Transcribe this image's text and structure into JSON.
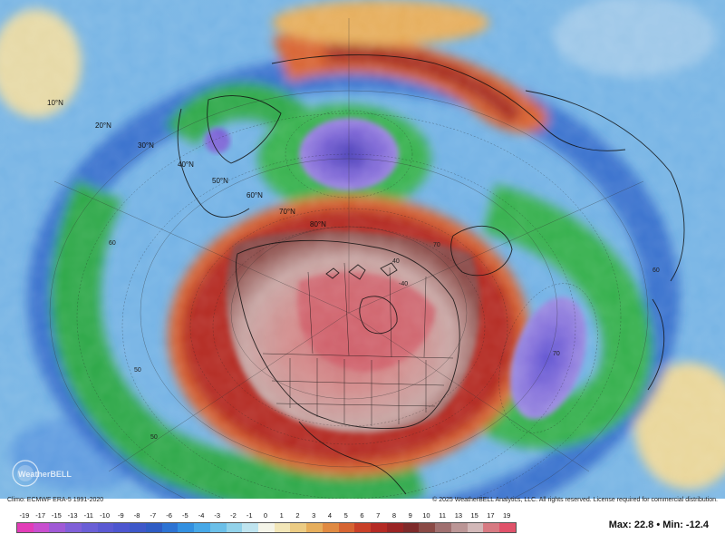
{
  "map": {
    "lat_labels": [
      "10°N",
      "20°N",
      "30°N",
      "40°N",
      "50°N",
      "60°N",
      "70°N",
      "80°N"
    ],
    "watermark": "WeatherBELL",
    "contour_values": [
      "40",
      "50",
      "60",
      "70",
      "50",
      "60",
      "-40",
      "70"
    ]
  },
  "footer": {
    "climo": "Climo: ECMWF ERA-5 1991-2020",
    "copyright": "© 2025 WeatherBELL Analytics, LLC. All rights reserved. License required for commercial distribution."
  },
  "colorbar": {
    "ticks": [
      "-19",
      "-17",
      "-15",
      "-13",
      "-11",
      "-10",
      "-9",
      "-8",
      "-7",
      "-6",
      "-5",
      "-4",
      "-3",
      "-2",
      "-1",
      "0",
      "1",
      "2",
      "3",
      "4",
      "5",
      "6",
      "7",
      "8",
      "9",
      "10",
      "11",
      "13",
      "15",
      "17",
      "19"
    ],
    "colors": [
      "#e23db8",
      "#c84fcf",
      "#a05ad6",
      "#8060d8",
      "#6a5fd6",
      "#5b59d2",
      "#4d56cf",
      "#3e58c9",
      "#2f5cc4",
      "#2d73d3",
      "#3390e0",
      "#47a8e7",
      "#6bbfe8",
      "#92d2ea",
      "#bfe4ef",
      "#f4f4e8",
      "#f2e6b8",
      "#eccc84",
      "#e6ae5c",
      "#e08a42",
      "#d66432",
      "#c84028",
      "#b42a24",
      "#9a2424",
      "#7e2a2a",
      "#8a4a46",
      "#a07070",
      "#bb9696",
      "#d2b8b8",
      "#d77a82",
      "#e0526a"
    ]
  },
  "stats": {
    "max_label": "Max:",
    "max_value": "22.8",
    "separator": "•",
    "min_label": "Min:",
    "min_value": "-12.4"
  }
}
